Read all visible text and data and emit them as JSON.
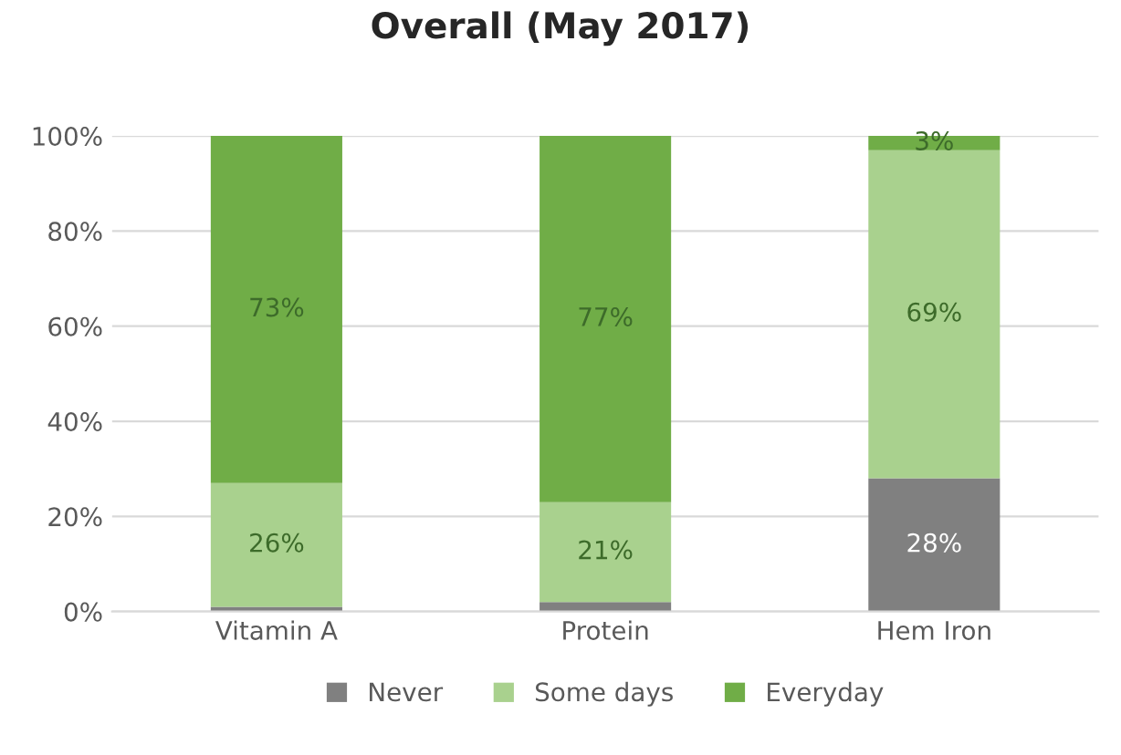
{
  "chart_data": {
    "type": "bar",
    "title": "Overall (May 2017)",
    "categories": [
      "Vitamin A",
      "Protein",
      "Hem Iron"
    ],
    "stacked": true,
    "series": [
      {
        "name": "Never",
        "color": "#808080",
        "values": [
          1,
          2,
          28
        ],
        "value_labels": [
          null,
          null,
          "28%"
        ]
      },
      {
        "name": "Some days",
        "color": "#a9d18e",
        "values": [
          26,
          21,
          69
        ],
        "value_labels": [
          "26%",
          "21%",
          "69%"
        ]
      },
      {
        "name": "Everyday",
        "color": "#70ad47",
        "values": [
          73,
          77,
          3
        ],
        "value_labels": [
          "73%",
          "77%",
          "3%"
        ]
      }
    ],
    "ylim": [
      0,
      100
    ],
    "yticks": [
      {
        "value": 0,
        "label": "0%"
      },
      {
        "value": 20,
        "label": "20%"
      },
      {
        "value": 40,
        "label": "40%"
      },
      {
        "value": 60,
        "label": "60%"
      },
      {
        "value": 80,
        "label": "80%"
      },
      {
        "value": 100,
        "label": "100%"
      }
    ],
    "grid": "y",
    "legend": "bottom"
  }
}
